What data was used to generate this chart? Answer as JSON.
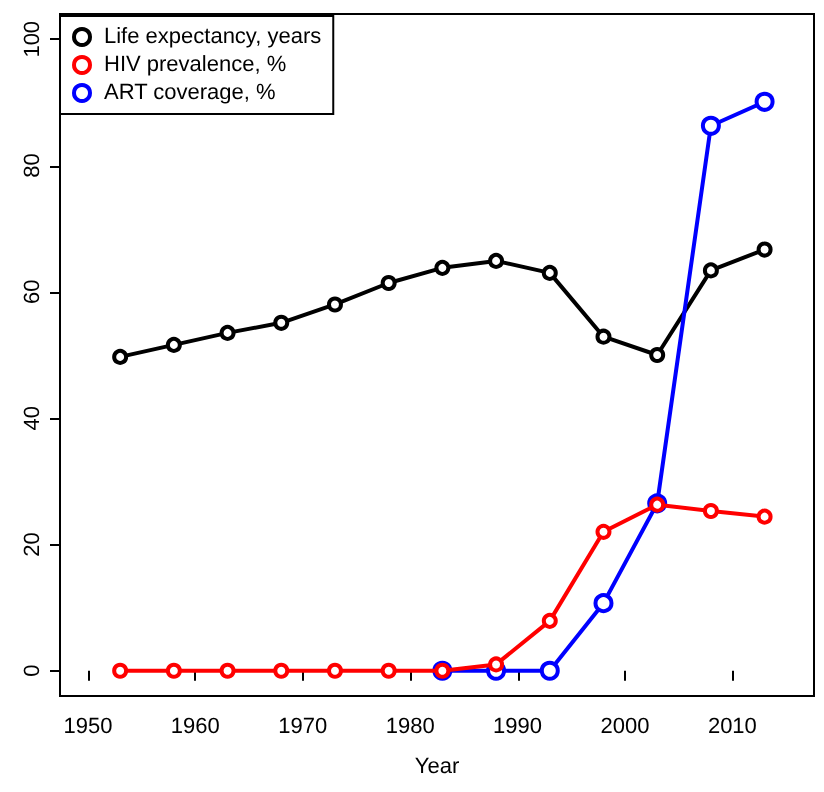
{
  "chart_data": {
    "type": "line",
    "xlabel": "Year",
    "x": [
      1953,
      1958,
      1963,
      1968,
      1973,
      1978,
      1983,
      1988,
      1993,
      1998,
      2003,
      2008,
      2013
    ],
    "series": [
      {
        "name": "Life expectancy, years",
        "color": "#000000",
        "values": [
          49.7,
          51.6,
          53.5,
          55.1,
          58.0,
          61.4,
          63.8,
          64.9,
          63.0,
          52.9,
          50.0,
          63.4,
          66.7
        ]
      },
      {
        "name": "HIV prevalence, %",
        "color": "#ff0000",
        "values": [
          0,
          0,
          0,
          0,
          0,
          0,
          0,
          1,
          7.9,
          22,
          26.3,
          25.3,
          24.4
        ]
      },
      {
        "name": "ART coverage, %",
        "color": "#0000ff",
        "values": [
          null,
          null,
          null,
          null,
          null,
          null,
          0,
          0,
          0,
          10.7,
          26.5,
          86.3,
          90.1
        ]
      }
    ],
    "xlim": [
      1947.4,
      2017.6
    ],
    "xticks": [
      1950,
      1960,
      1970,
      1980,
      1990,
      2000,
      2010
    ],
    "ylim": [
      -4,
      104
    ],
    "yticks": [
      0,
      20,
      40,
      60,
      80,
      100
    ],
    "legend": "top left",
    "marker": "circle",
    "line_style": "solid",
    "grid": false
  }
}
